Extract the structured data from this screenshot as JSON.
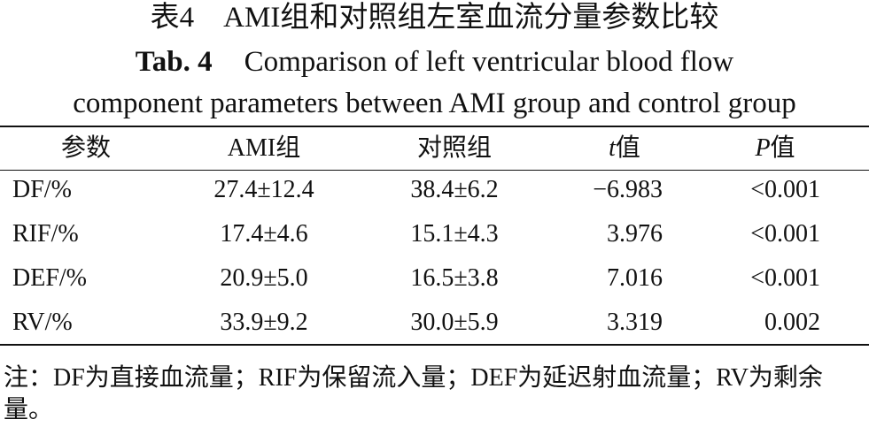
{
  "caption": {
    "cn": "表4　AMI组和对照组左室血流分量参数比较",
    "label": "Tab. 4",
    "line1": "Comparison of left ventricular blood flow",
    "line2": "component parameters between AMI group and control group"
  },
  "table": {
    "headers": [
      {
        "text": "参数"
      },
      {
        "text": "AMI组"
      },
      {
        "text": "对照组"
      },
      {
        "italic": "t",
        "text": "值"
      },
      {
        "italic": "P",
        "text": "值"
      }
    ],
    "rows": [
      [
        "DF/%",
        "27.4±12.4",
        "38.4±6.2",
        "−6.983",
        "<0.001"
      ],
      [
        "RIF/%",
        "17.4±4.6",
        "15.1±4.3",
        "3.976",
        "<0.001"
      ],
      [
        "DEF/%",
        "20.9±5.0",
        "16.5±3.8",
        "7.016",
        "<0.001"
      ],
      [
        "RV/%",
        "33.9±9.2",
        "30.0±5.9",
        "3.319",
        "0.002"
      ]
    ]
  },
  "note": "注：DF为直接血流量；RIF为保留流入量；DEF为延迟射血流量；RV为剩余量。"
}
